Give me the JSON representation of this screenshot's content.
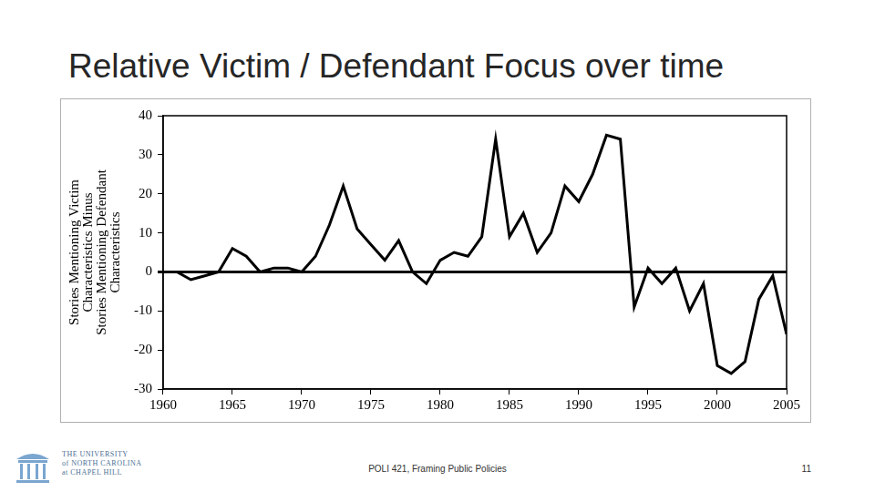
{
  "chart_data": {
    "type": "line",
    "title": "Relative Victim / Defendant Focus over time",
    "y_label": [
      "Stories Mentioning Victim",
      "Characteristics Minus",
      "Stories Mentioning Defendant",
      "Characteristics"
    ],
    "x": [
      1960,
      1961,
      1962,
      1963,
      1964,
      1965,
      1966,
      1967,
      1968,
      1969,
      1970,
      1971,
      1972,
      1973,
      1974,
      1975,
      1976,
      1977,
      1978,
      1979,
      1980,
      1981,
      1982,
      1983,
      1984,
      1985,
      1986,
      1987,
      1988,
      1989,
      1990,
      1991,
      1992,
      1993,
      1994,
      1995,
      1996,
      1997,
      1998,
      1999,
      2000,
      2001,
      2002,
      2003,
      2004,
      2005
    ],
    "values": [
      0,
      0,
      -2,
      -1,
      0,
      6,
      4,
      0,
      1,
      1,
      0,
      4,
      12,
      22,
      11,
      7,
      3,
      8,
      0,
      -3,
      3,
      5,
      4,
      9,
      34,
      9,
      15,
      5,
      10,
      22,
      18,
      25,
      35,
      34,
      -9,
      1,
      -3,
      1,
      -10,
      -3,
      -24,
      -26,
      -23,
      -7,
      -1,
      -16
    ],
    "color": "#000000",
    "xlim": [
      1960,
      2005
    ],
    "xticks": [
      1960,
      1965,
      1970,
      1975,
      1980,
      1985,
      1990,
      1995,
      2000,
      2005
    ],
    "ylim": [
      -30,
      40
    ],
    "yticks": [
      -30,
      -20,
      -10,
      0,
      10,
      20,
      30,
      40
    ],
    "grid": false
  },
  "slide": {
    "footer": "POLI 421, Framing Public Policies",
    "page": "11",
    "logo": [
      "THE UNIVERSITY",
      "of NORTH CAROLINA",
      "at CHAPEL HILL"
    ]
  }
}
